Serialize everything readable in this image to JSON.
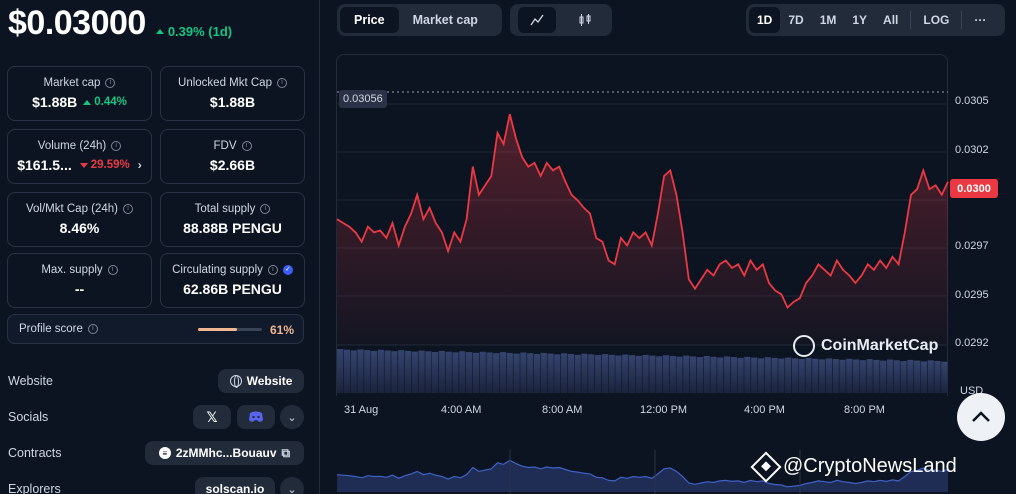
{
  "header": {
    "price": "$0.03000",
    "change": "0.39% (1d)"
  },
  "stats": {
    "market_cap": {
      "label": "Market cap",
      "value": "$1.88B",
      "change": "0.44%"
    },
    "unlocked_mkt_cap": {
      "label": "Unlocked Mkt Cap",
      "value": "$1.88B"
    },
    "volume": {
      "label": "Volume (24h)",
      "value": "$161.5...",
      "change": "29.59%"
    },
    "fdv": {
      "label": "FDV",
      "value": "$2.66B"
    },
    "vol_mkt_cap": {
      "label": "Vol/Mkt Cap (24h)",
      "value": "8.46%"
    },
    "total_supply": {
      "label": "Total supply",
      "value": "88.88B PENGU"
    },
    "max_supply": {
      "label": "Max. supply",
      "value": "--"
    },
    "circulating_supply": {
      "label": "Circulating supply",
      "value": "62.86B PENGU"
    }
  },
  "profile": {
    "label": "Profile score",
    "value": "61%",
    "fraction": 0.61
  },
  "rows": {
    "website": {
      "label": "Website",
      "button": "Website"
    },
    "socials": {
      "label": "Socials"
    },
    "contracts": {
      "label": "Contracts",
      "address": "2zMMhc...Bouauv"
    },
    "explorers": {
      "label": "Explorers",
      "button": "solscan.io"
    }
  },
  "chart_controls": {
    "tabs": [
      "Price",
      "Market cap"
    ],
    "active_tab": "Price",
    "timeframes": [
      "1D",
      "7D",
      "1M",
      "1Y",
      "All"
    ],
    "active_timeframe": "1D",
    "log_label": "LOG",
    "more_label": "···",
    "icons": [
      "line-chart-icon",
      "candlestick-icon"
    ]
  },
  "chart_data": {
    "type": "line",
    "x_axis_labels": [
      "31 Aug",
      "4:00 AM",
      "8:00 AM",
      "12:00 PM",
      "4:00 PM",
      "8:00 PM"
    ],
    "y_axis_labels": [
      "0.0305",
      "0.0302",
      "0.0300",
      "0.0297",
      "0.0295",
      "0.0292"
    ],
    "current_price_tag": "0.0300",
    "high_label": "0.03056",
    "currency_label": "USD",
    "watermark": "CoinMarketCap",
    "ylim": [
      0.02915,
      0.0307
    ],
    "series": [
      {
        "values": [
          0.02982,
          0.0298,
          0.02978,
          0.02975,
          0.0297,
          0.02978,
          0.02975,
          0.02976,
          0.02972,
          0.0298,
          0.02968,
          0.02978,
          0.02985,
          0.02995,
          0.02982,
          0.02988,
          0.0298,
          0.02975,
          0.02965,
          0.02975,
          0.0297,
          0.02982,
          0.0301,
          0.02995,
          0.03,
          0.03005,
          0.03028,
          0.03022,
          0.03038,
          0.03025,
          0.03015,
          0.0301,
          0.03012,
          0.03005,
          0.03012,
          0.03008,
          0.0301,
          0.03002,
          0.02995,
          0.02992,
          0.02988,
          0.02985,
          0.02972,
          0.0297,
          0.0296,
          0.02958,
          0.02972,
          0.02968,
          0.02975,
          0.02972,
          0.02975,
          0.02968,
          0.02985,
          0.03005,
          0.03008,
          0.02995,
          0.02975,
          0.0295,
          0.02945,
          0.0295,
          0.02955,
          0.02952,
          0.02958,
          0.0296,
          0.02956,
          0.02958,
          0.02952,
          0.0296,
          0.02955,
          0.02958,
          0.02948,
          0.02944,
          0.02942,
          0.02935,
          0.02938,
          0.0294,
          0.02948,
          0.02952,
          0.02958,
          0.02955,
          0.02952,
          0.0296,
          0.02955,
          0.02952,
          0.02948,
          0.02952,
          0.02958,
          0.02955,
          0.0296,
          0.02956,
          0.02962,
          0.02958,
          0.02975,
          0.02995,
          0.02998,
          0.03008,
          0.02998,
          0.03,
          0.02995,
          0.03002
        ]
      }
    ],
    "volume_bars": 90,
    "line_color": "#ea3943"
  },
  "credit": "@CryptoNewsLand"
}
